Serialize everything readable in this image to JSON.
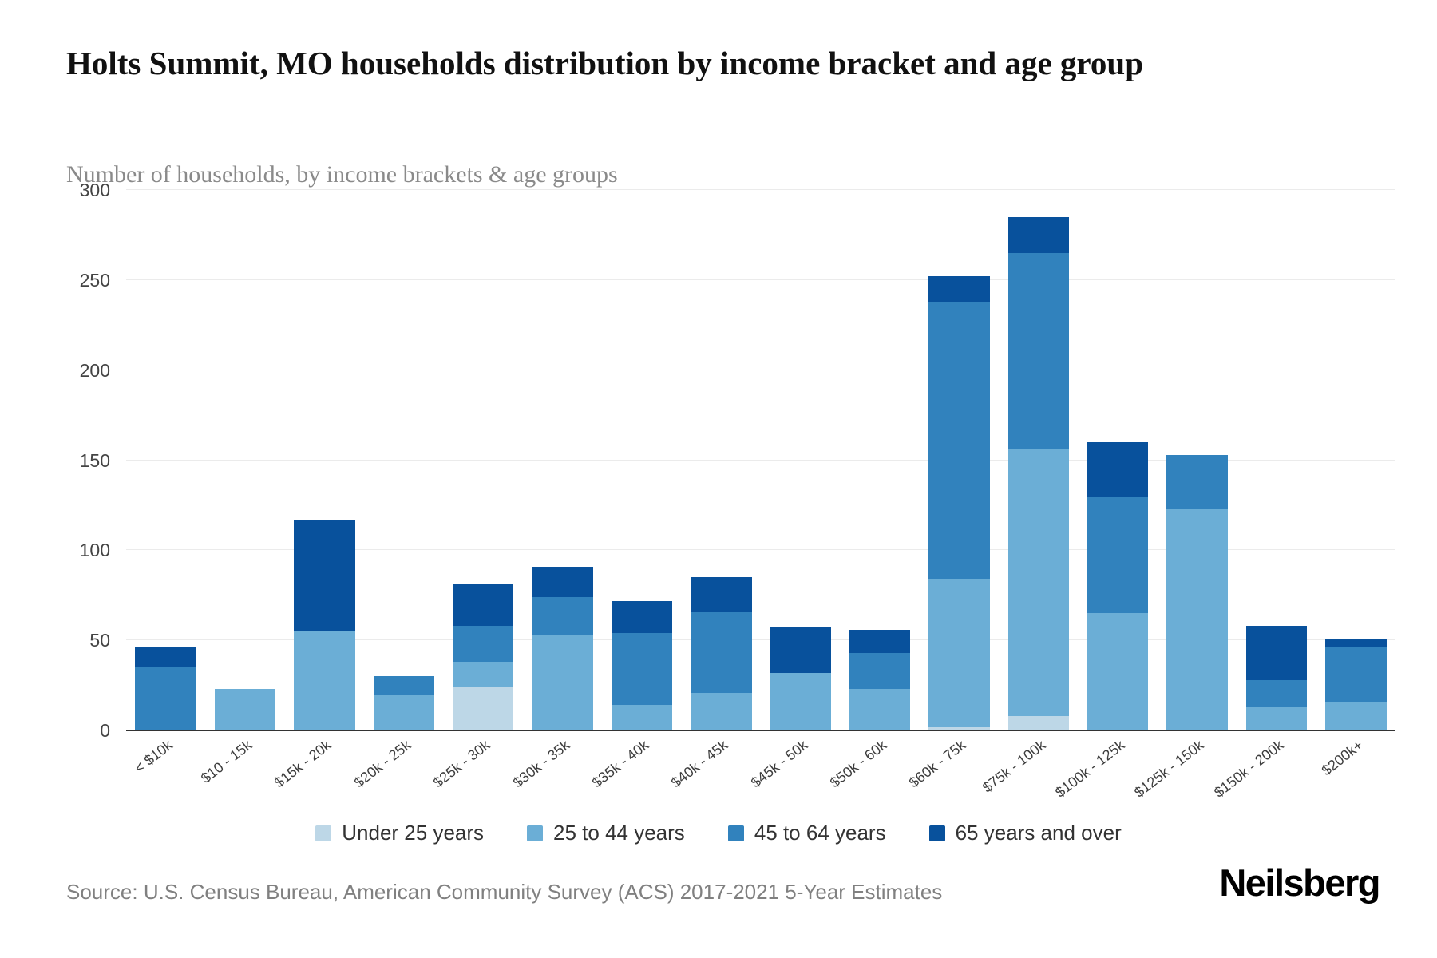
{
  "header": {
    "title": "Holts Summit, MO households distribution by income bracket and age group",
    "subtitle": "Number of households, by income brackets & age groups"
  },
  "chart_data": {
    "type": "bar",
    "stacked": true,
    "title": "Holts Summit, MO households distribution by income bracket and age group",
    "subtitle": "Number of households, by income brackets & age groups",
    "xlabel": "",
    "ylabel": "Number of households",
    "ylim": [
      0,
      300
    ],
    "ytick_step": 50,
    "grid": "horizontal",
    "legend_position": "bottom",
    "categories": [
      "< $10k",
      "$10 - 15k",
      "$15k - 20k",
      "$20k - 25k",
      "$25k - 30k",
      "$30k - 35k",
      "$35k - 40k",
      "$40k - 45k",
      "$45k - 50k",
      "$50k - 60k",
      "$60k - 75k",
      "$75k - 100k",
      "$100k - 125k",
      "$125k - 150k",
      "$150k - 200k",
      "$200k+"
    ],
    "series": [
      {
        "name": "Under 25 years",
        "color": "#bdd7e7",
        "values": [
          0,
          0,
          0,
          0,
          24,
          0,
          0,
          0,
          0,
          0,
          2,
          8,
          0,
          0,
          0,
          0
        ]
      },
      {
        "name": "25 to 44 years",
        "color": "#6baed6",
        "values": [
          0,
          23,
          55,
          20,
          14,
          53,
          14,
          21,
          32,
          23,
          82,
          148,
          65,
          123,
          13,
          16
        ]
      },
      {
        "name": "45 to 64 years",
        "color": "#3182bd",
        "values": [
          35,
          0,
          0,
          10,
          20,
          21,
          40,
          45,
          0,
          20,
          154,
          109,
          65,
          30,
          15,
          30
        ]
      },
      {
        "name": "65 years and over",
        "color": "#08519c",
        "values": [
          11,
          0,
          62,
          0,
          23,
          17,
          18,
          19,
          25,
          13,
          14,
          20,
          30,
          0,
          30,
          5
        ]
      }
    ]
  },
  "footer": {
    "source": "Source: U.S. Census Bureau, American Community Survey (ACS) 2017-2021 5-Year Estimates",
    "logo": "Neilsberg"
  }
}
